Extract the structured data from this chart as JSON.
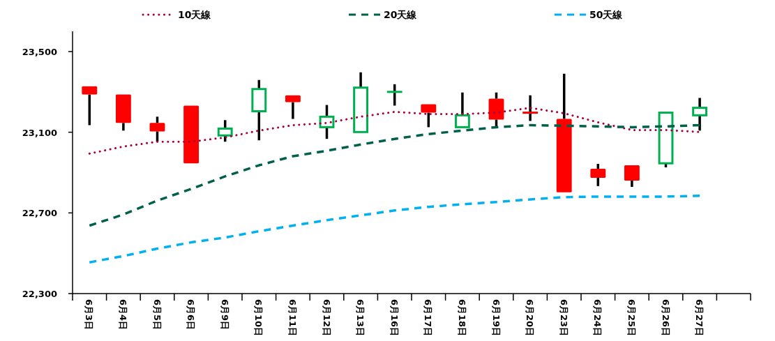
{
  "chart_data": {
    "type": "candlestick",
    "categories": [
      "6月3日",
      "6月4日",
      "6月5日",
      "6月6日",
      "6月9日",
      "6月10日",
      "6月11日",
      "6月12日",
      "6月13日",
      "6月16日",
      "6月17日",
      "6月18日",
      "6月19日",
      "6月20日",
      "6月23日",
      "6月24日",
      "6月25日",
      "6月26日",
      "6月27日",
      null
    ],
    "ohlc": [
      [
        23328,
        23328,
        23135,
        23287
      ],
      [
        23287,
        23287,
        23108,
        23146
      ],
      [
        23146,
        23177,
        23053,
        23104
      ],
      [
        23232,
        23232,
        22946,
        22946
      ],
      [
        23084,
        23160,
        23053,
        23118
      ],
      [
        23204,
        23359,
        23060,
        23314
      ],
      [
        23283,
        23283,
        23166,
        23249
      ],
      [
        23125,
        23235,
        23067,
        23177
      ],
      [
        23101,
        23397,
        23101,
        23321
      ],
      [
        23300,
        23338,
        23232,
        23300
      ],
      [
        23239,
        23239,
        23125,
        23197
      ],
      [
        23125,
        23297,
        23125,
        23184
      ],
      [
        23266,
        23297,
        23125,
        23163
      ],
      [
        23197,
        23283,
        23156,
        23197
      ],
      [
        23166,
        23390,
        22802,
        22802
      ],
      [
        22919,
        22943,
        22833,
        22874
      ],
      [
        22936,
        22936,
        22829,
        22860
      ],
      [
        22946,
        23197,
        22926,
        23197
      ],
      [
        23184,
        23270,
        23108,
        23221
      ],
      null
    ],
    "colors": [
      "#ff0000",
      "#ff0000",
      "#ff0000",
      "#ff0000",
      "#00b050",
      "#00b050",
      "#ff0000",
      "#00b050",
      "#00b050",
      "#00b050",
      "#ff0000",
      "#00b050",
      "#ff0000",
      "#ff0000",
      "#ff0000",
      "#ff0000",
      "#ff0000",
      "#00b050",
      "#00b050",
      null
    ],
    "series": [
      {
        "name": "10天線",
        "type": "line",
        "color": "#a50040",
        "line_style": "dotted",
        "values": [
          22994,
          23029,
          23053,
          23053,
          23074,
          23108,
          23135,
          23146,
          23177,
          23201,
          23190,
          23190,
          23197,
          23221,
          23194,
          23149,
          23111,
          23111,
          23101,
          null
        ]
      },
      {
        "name": "20天線",
        "type": "line",
        "color": "#00604a",
        "line_style": "dashed",
        "values": [
          22637,
          22692,
          22761,
          22819,
          22881,
          22936,
          22981,
          23008,
          23039,
          23067,
          23091,
          23108,
          23125,
          23135,
          23132,
          23129,
          23125,
          23129,
          23135,
          null
        ]
      },
      {
        "name": "50天線",
        "type": "line",
        "color": "#00b0f0",
        "line_style": "dashed",
        "values": [
          22455,
          22486,
          22523,
          22554,
          22578,
          22609,
          22637,
          22664,
          22688,
          22712,
          22730,
          22743,
          22754,
          22767,
          22778,
          22781,
          22781,
          22781,
          22785,
          null
        ]
      }
    ],
    "ylim": [
      22300,
      23600
    ],
    "yticks": [
      {
        "value": 22300,
        "label": "22,300"
      },
      {
        "value": 22700,
        "label": "22,700"
      },
      {
        "value": 23100,
        "label": "23,100"
      },
      {
        "value": 23500,
        "label": "23,500"
      }
    ],
    "legend": "top",
    "grid": false
  }
}
